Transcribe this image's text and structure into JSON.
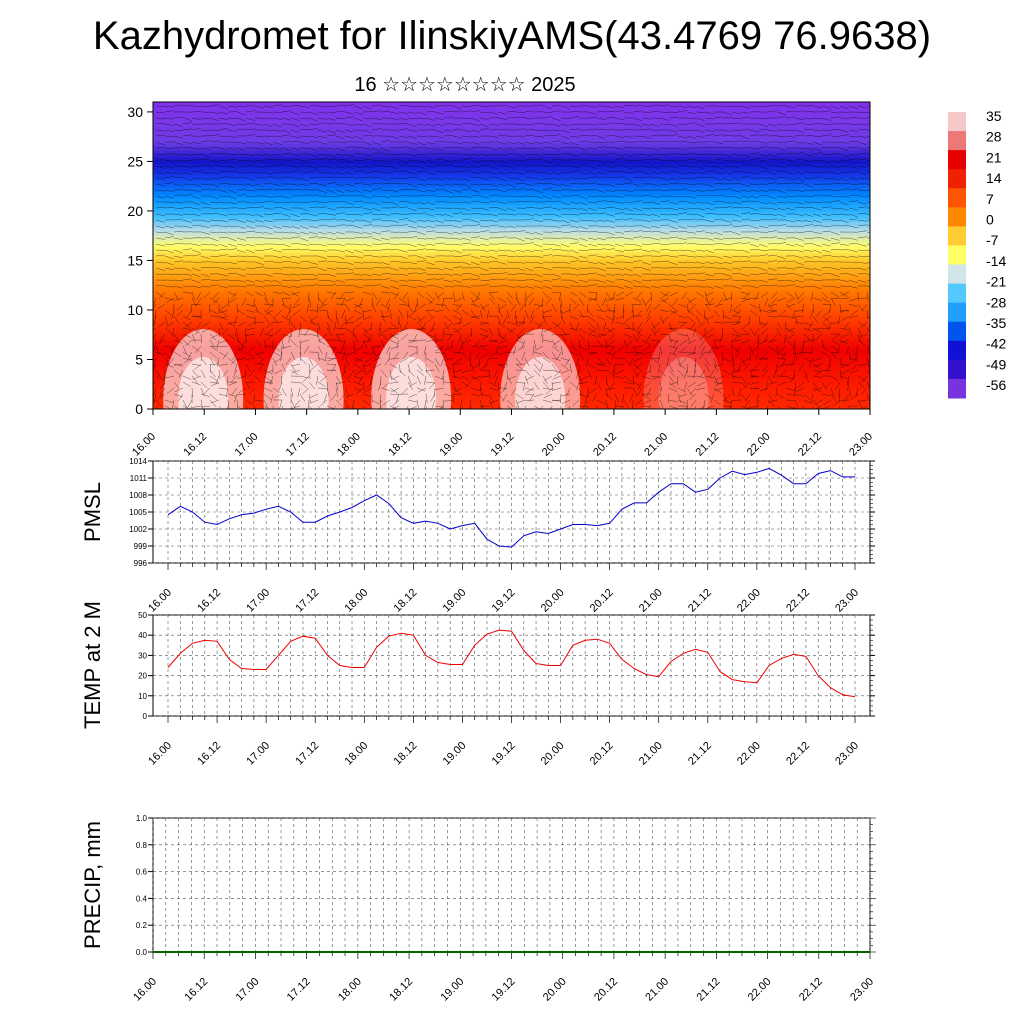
{
  "title": "Kazhydromet for IlinskiyAMS(43.4769 76.9638)",
  "subtitle": "16 ☆☆☆☆☆☆☆☆ 2025",
  "time_labels": [
    "16.00",
    "16.12",
    "17.00",
    "17.12",
    "18.00",
    "18.12",
    "19.00",
    "19.12",
    "20.00",
    "20.12",
    "21.00",
    "21.12",
    "22.00",
    "22.12",
    "23.00"
  ],
  "chart_data": [
    {
      "type": "heatmap",
      "ylim": [
        0,
        31
      ],
      "yticks": [
        "0",
        "5",
        "10",
        "15",
        "20",
        "25",
        "30"
      ],
      "colorbar_ticks": [
        "35",
        "28",
        "21",
        "14",
        "7",
        "0",
        "-7",
        "-14",
        "-21",
        "-28",
        "-35",
        "-42",
        "-49",
        "-56"
      ],
      "colors": {
        "warm": "#ff3300",
        "white": "#f8e0e0",
        "yellow": "#ffff66",
        "cyan": "#33ccff",
        "blue": "#1e1ee6",
        "purple": "#7733dd"
      },
      "description_of_field": "vertical temperature cross-section with wind barbs"
    },
    {
      "type": "line",
      "ylabel": "PMSL",
      "ylim": [
        996,
        1014
      ],
      "yticks": [
        "996",
        "999",
        "1002",
        "1005",
        "1008",
        "1011",
        "1014"
      ],
      "color": "#0000cc",
      "values": [
        1004.5,
        1006,
        1005,
        1003.2,
        1002.8,
        1003.8,
        1004.5,
        1004.8,
        1005.5,
        1006,
        1005,
        1003.2,
        1003.2,
        1004.3,
        1005,
        1005.8,
        1007,
        1008,
        1006.5,
        1004,
        1003,
        1003.4,
        1003,
        1002,
        1002.6,
        1003,
        1000.2,
        999,
        998.8,
        1000.8,
        1001.5,
        1001.2,
        1002,
        1002.8,
        1002.8,
        1002.6,
        1003,
        1005.5,
        1006.6,
        1006.6,
        1008.5,
        1010,
        1010,
        1008.5,
        1009,
        1011,
        1012.2,
        1011.6,
        1012,
        1012.7,
        1011.5,
        1010,
        1010,
        1011.8,
        1012.3,
        1011.2,
        1011.2
      ]
    },
    {
      "type": "line",
      "ylabel": "TEMP at 2 M",
      "ylim": [
        0,
        50
      ],
      "yticks": [
        "0",
        "10",
        "20",
        "30",
        "40",
        "50"
      ],
      "color": "#ee0000",
      "values": [
        24,
        31,
        36,
        37.5,
        37,
        28,
        23.5,
        23,
        23,
        30,
        37,
        39.5,
        38.5,
        30,
        25,
        24,
        24,
        34,
        39.5,
        41,
        40,
        30,
        26.5,
        25.5,
        25.5,
        35,
        40.5,
        42.5,
        42,
        32.5,
        26,
        25,
        25,
        35,
        37.5,
        38,
        36,
        28,
        23.5,
        20.5,
        19.5,
        27,
        31,
        33,
        31.5,
        22,
        18,
        17,
        16.5,
        25,
        28.5,
        30.5,
        29.5,
        20,
        14,
        10.5,
        9.5
      ]
    },
    {
      "type": "bar",
      "ylabel": "PRECIP, mm",
      "ylim": [
        0,
        1
      ],
      "yticks": [
        "0.0",
        "0.2",
        "0.4",
        "0.6",
        "0.8",
        "1.0"
      ],
      "color": "#006600",
      "values": []
    }
  ]
}
